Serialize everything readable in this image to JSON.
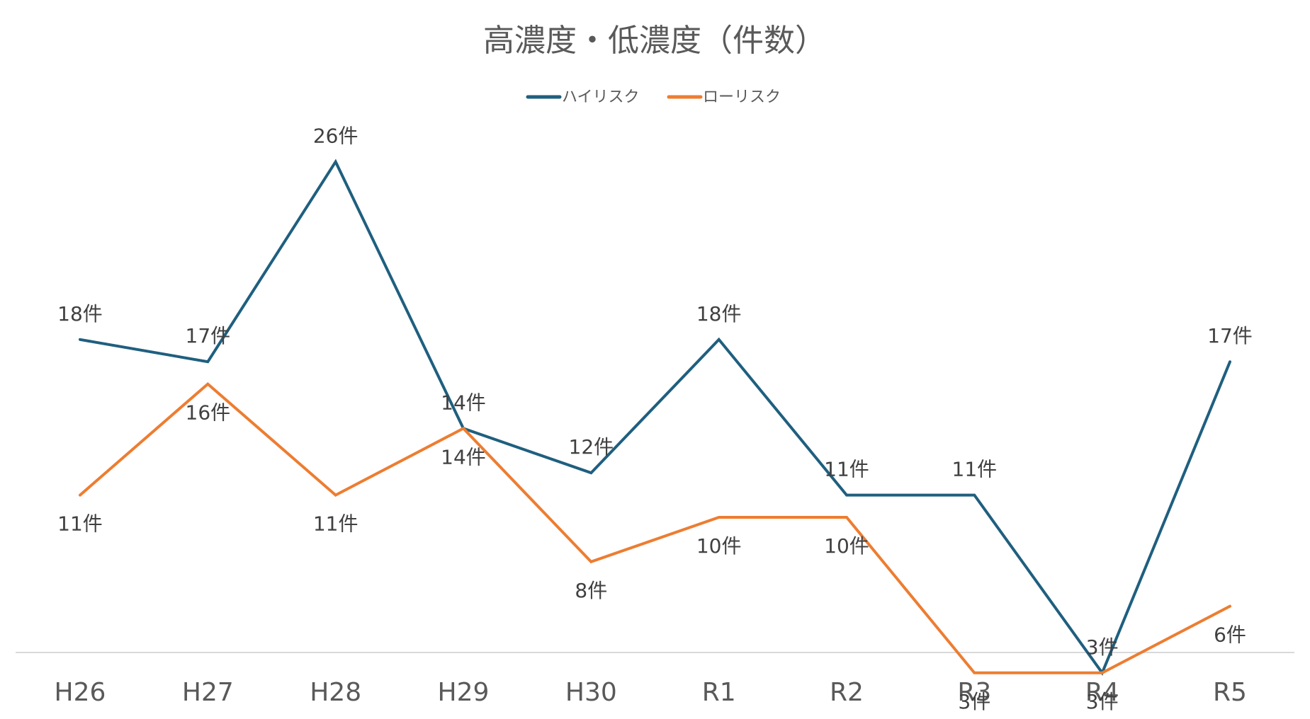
{
  "chart_data": {
    "type": "line",
    "title": "高濃度・低濃度（件数）",
    "xlabel": "",
    "ylabel": "",
    "categories": [
      "H26",
      "H27",
      "H28",
      "H29",
      "H30",
      "R1",
      "R2",
      "R3",
      "R4",
      "R5"
    ],
    "series": [
      {
        "name": "ハイリスク",
        "color": "#1f5f7f",
        "values": [
          18,
          17,
          26,
          14,
          12,
          18,
          11,
          11,
          3,
          17
        ],
        "labels": [
          "18件",
          "17件",
          "26件",
          "14件",
          "12件",
          "18件",
          "11件",
          "11件",
          "3件",
          "17件"
        ]
      },
      {
        "name": "ローリスク",
        "color": "#ed7d31",
        "values": [
          11,
          16,
          11,
          14,
          8,
          10,
          10,
          3,
          3,
          6
        ],
        "labels": [
          "11件",
          "16件",
          "11件",
          "14件",
          "8件",
          "10件",
          "10件",
          "3件",
          "3件",
          "6件"
        ]
      }
    ],
    "ylim": [
      0,
      30
    ],
    "grid": false,
    "legend_position": "top-center",
    "axis_line_color": "#d9d9d9"
  }
}
